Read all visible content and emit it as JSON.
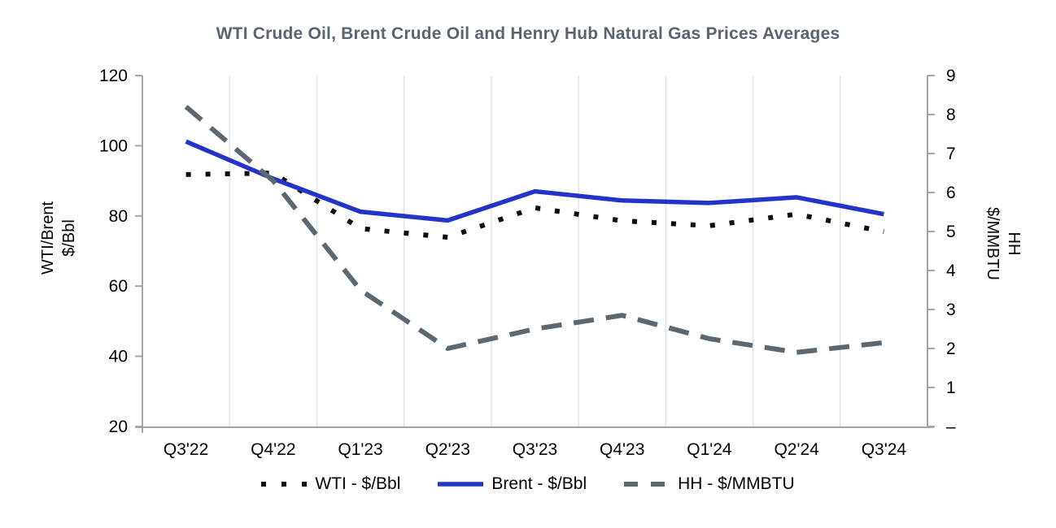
{
  "chart_data": {
    "type": "line",
    "title": "WTI Crude Oil, Brent Crude Oil and Henry Hub Natural Gas Prices Averages",
    "categories": [
      "Q3'22",
      "Q4'22",
      "Q1'23",
      "Q2'23",
      "Q3'23",
      "Q4'23",
      "Q1'24",
      "Q2'24",
      "Q3'24"
    ],
    "series": [
      {
        "name": "WTI - $/Bbl",
        "axis": "left",
        "line_style": "dotted",
        "color": "#0d0d0d",
        "values": [
          91.8,
          92.2,
          76.4,
          73.9,
          82.3,
          78.6,
          77.2,
          80.5,
          75.5
        ]
      },
      {
        "name": "Brent - $/Bbl",
        "axis": "left",
        "line_style": "solid",
        "color": "#2235c8",
        "values": [
          101.2,
          90.6,
          81.2,
          78.7,
          87.0,
          84.4,
          83.7,
          85.3,
          80.5
        ]
      },
      {
        "name": "HH - $/MMBTU",
        "axis": "right",
        "line_style": "dashed",
        "color": "#5b6771",
        "values": [
          8.2,
          6.3,
          3.5,
          2.0,
          2.5,
          2.85,
          2.25,
          1.9,
          2.15
        ]
      }
    ],
    "left_axis": {
      "title_line1": "WTI/Brent",
      "title_line2": "$/Bbl",
      "min": 20,
      "max": 120,
      "tick_values": [
        120,
        100,
        80,
        60,
        40,
        20
      ],
      "tick_labels": [
        "120",
        "100",
        "80",
        "60",
        "40",
        "20"
      ]
    },
    "right_axis": {
      "title_line1": "HH",
      "title_line2": "$/MMBTU",
      "min": 0,
      "max": 9,
      "tick_values": [
        9,
        8,
        7,
        6,
        5,
        4,
        3,
        2,
        1,
        0
      ],
      "tick_labels": [
        "9",
        "8",
        "7",
        "6",
        "5",
        "4",
        "3",
        "2",
        "1",
        "–"
      ]
    },
    "legend_position": "bottom",
    "grid": "vertical"
  },
  "style": {
    "title_color": "#5a6470",
    "axis_line_color": "#a5a5a5",
    "gridline_color": "#e3e4e6",
    "tick_label_color": "#000000"
  }
}
